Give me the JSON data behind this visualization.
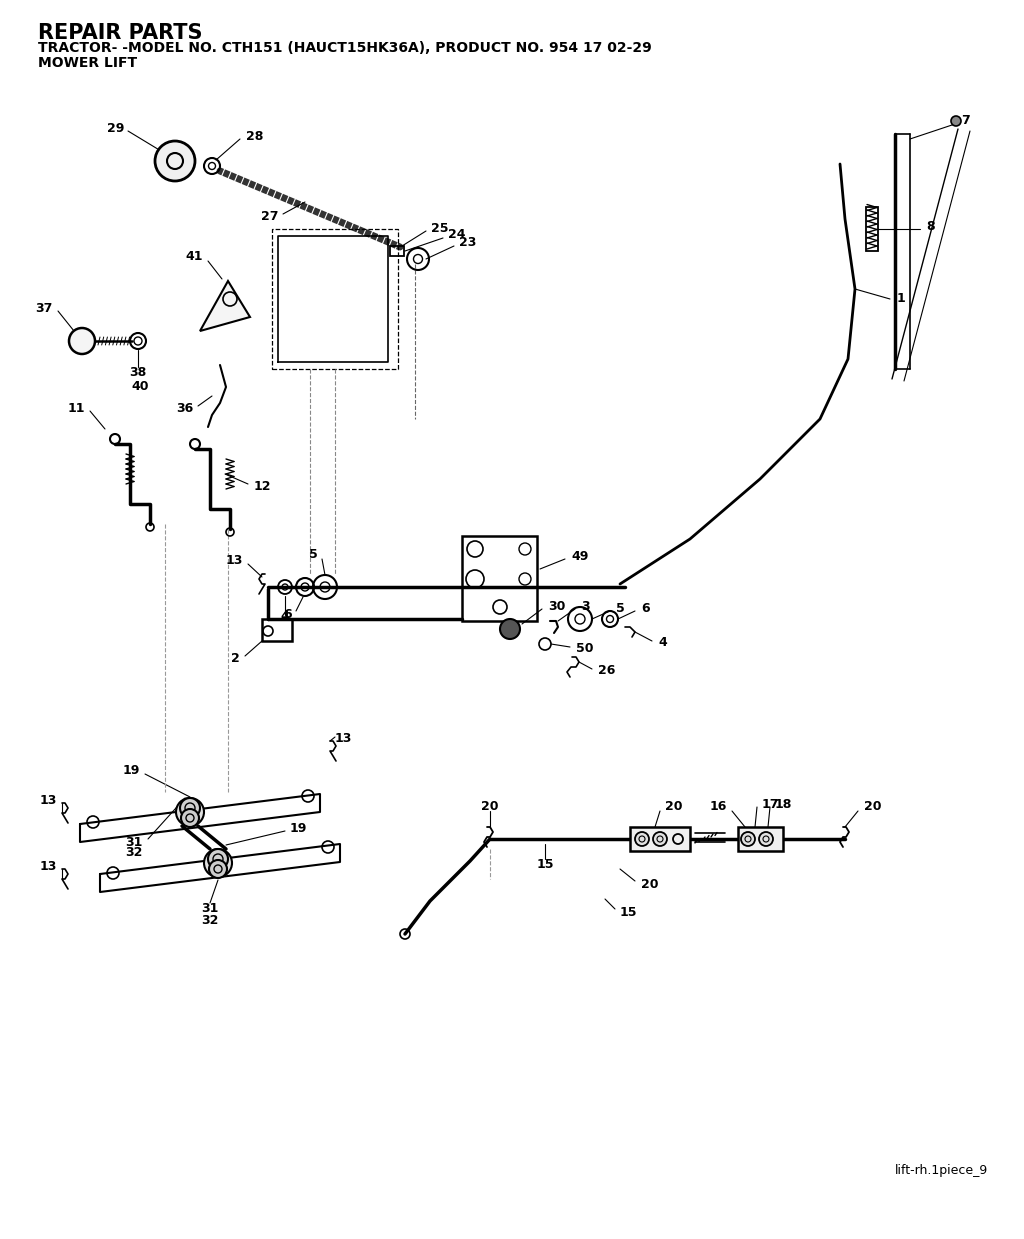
{
  "title": "REPAIR PARTS",
  "subtitle": "TRACTOR- -MODEL NO. CTH151 (HAUCT15HK36A), PRODUCT NO. 954 17 02-29",
  "subtitle2": "MOWER LIFT",
  "footer": "lift-rh.1piece_9",
  "bg_color": "#ffffff"
}
